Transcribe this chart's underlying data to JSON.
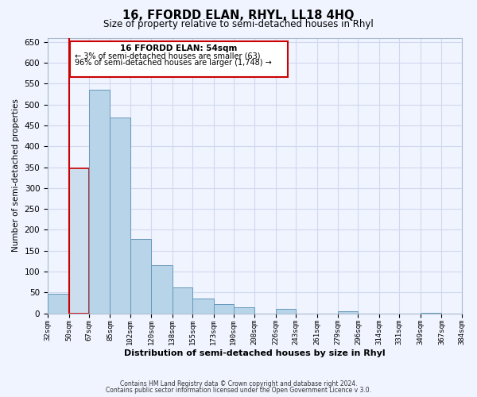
{
  "title": "16, FFORDD ELAN, RHYL, LL18 4HQ",
  "subtitle": "Size of property relative to semi-detached houses in Rhyl",
  "xlabel": "Distribution of semi-detached houses by size in Rhyl",
  "ylabel": "Number of semi-detached properties",
  "footer_line1": "Contains HM Land Registry data © Crown copyright and database right 2024.",
  "footer_line2": "Contains public sector information licensed under the Open Government Licence v 3.0.",
  "annotation_title": "16 FFORDD ELAN: 54sqm",
  "annotation_line1": "← 3% of semi-detached houses are smaller (63)",
  "annotation_line2": "96% of semi-detached houses are larger (1,748) →",
  "bar_edges": [
    32,
    50,
    67,
    85,
    102,
    120,
    138,
    155,
    173,
    190,
    208,
    226,
    243,
    261,
    279,
    296,
    314,
    331,
    349,
    367,
    384
  ],
  "bar_heights": [
    47,
    348,
    535,
    468,
    178,
    115,
    62,
    36,
    22,
    15,
    0,
    11,
    0,
    0,
    4,
    0,
    0,
    0,
    1,
    0
  ],
  "highlight_bar_index": 1,
  "highlight_color": "#ccdded",
  "normal_color": "#b8d4e8",
  "highlight_edge_color": "#cc0000",
  "normal_edge_color": "#6699bb",
  "annotation_box_edge": "#cc0000",
  "ylim": [
    0,
    660
  ],
  "yticks": [
    0,
    50,
    100,
    150,
    200,
    250,
    300,
    350,
    400,
    450,
    500,
    550,
    600,
    650
  ],
  "tick_labels": [
    "32sqm",
    "50sqm",
    "67sqm",
    "85sqm",
    "102sqm",
    "120sqm",
    "138sqm",
    "155sqm",
    "173sqm",
    "190sqm",
    "208sqm",
    "226sqm",
    "243sqm",
    "261sqm",
    "279sqm",
    "296sqm",
    "314sqm",
    "331sqm",
    "349sqm",
    "367sqm",
    "384sqm"
  ],
  "background_color": "#f0f4ff",
  "grid_color": "#d0d8ee",
  "vline_x": 50,
  "vline_color": "#cc0000"
}
